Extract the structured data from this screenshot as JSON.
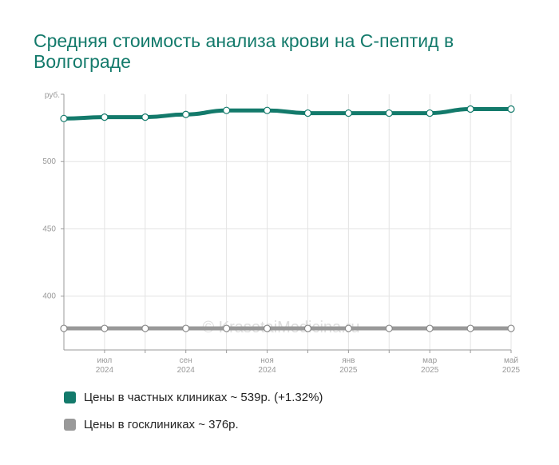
{
  "title": "Средняя стоимость анализа крови на С-пептид в Волгограде",
  "watermark": "© KrasotaiMedicina.ru",
  "legend": [
    {
      "label": "Цены в частных клиниках ~ 539р. (+1.32%)",
      "color": "#137a6b"
    },
    {
      "label": "Цены в госклиниках ~ 376р.",
      "color": "#999999"
    }
  ],
  "chart_data": {
    "type": "line",
    "ylabel": "руб.",
    "ylim": [
      360,
      550
    ],
    "yticks": [
      400,
      450,
      500
    ],
    "x": [
      "2024-06",
      "2024-07",
      "2024-08",
      "2024-09",
      "2024-10",
      "2024-11",
      "2024-12",
      "2025-01",
      "2025-02",
      "2025-03",
      "2025-04",
      "2025-05"
    ],
    "xtick_labels": [
      {
        "index": 1,
        "month": "июл",
        "year": "2024"
      },
      {
        "index": 3,
        "month": "сен",
        "year": "2024"
      },
      {
        "index": 5,
        "month": "ноя",
        "year": "2024"
      },
      {
        "index": 7,
        "month": "янв",
        "year": "2025"
      },
      {
        "index": 9,
        "month": "мар",
        "year": "2025"
      },
      {
        "index": 11,
        "month": "май",
        "year": "2025"
      }
    ],
    "series": [
      {
        "name": "Цены в частных клиниках",
        "color": "#137a6b",
        "values": [
          532,
          533,
          533,
          535,
          538,
          538,
          536,
          536,
          536,
          536,
          539,
          539
        ]
      },
      {
        "name": "Цены в госклиниках",
        "color": "#999999",
        "values": [
          376,
          376,
          376,
          376,
          376,
          376,
          376,
          376,
          376,
          376,
          376,
          376
        ]
      }
    ],
    "grid": true
  }
}
